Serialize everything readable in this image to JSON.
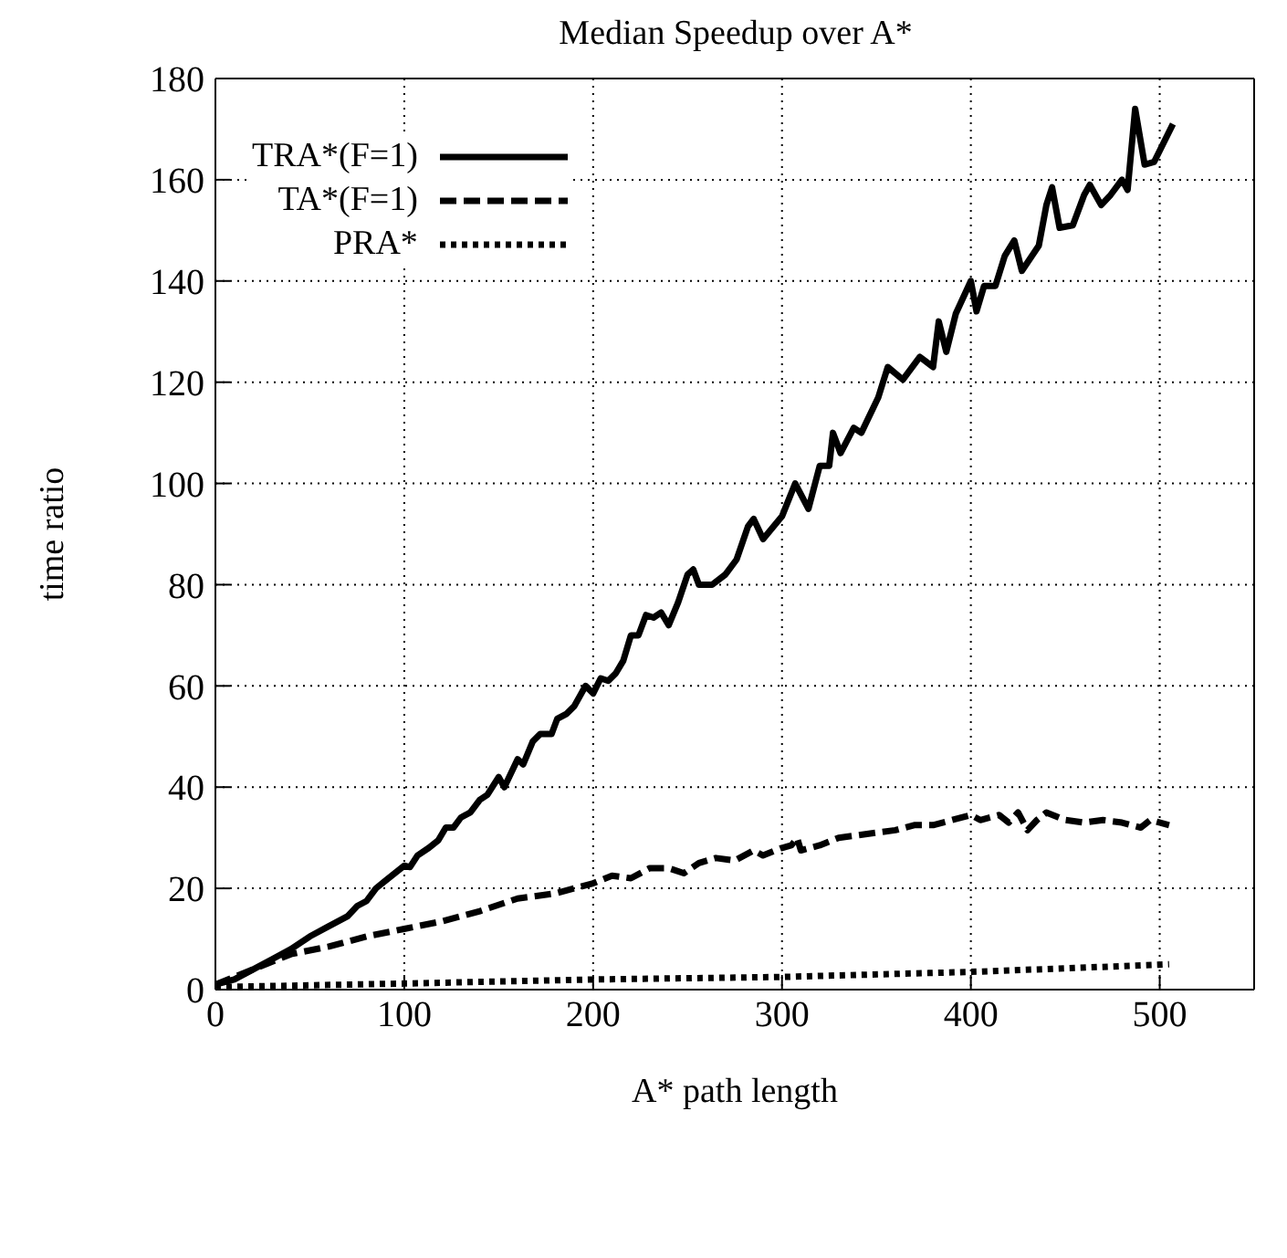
{
  "chart_data": {
    "type": "line",
    "title": "Median Speedup over A*",
    "xlabel": "A* path length",
    "ylabel": "time ratio",
    "xlim": [
      0,
      550
    ],
    "xticks": [
      0,
      100,
      200,
      300,
      400,
      500
    ],
    "ylim": [
      0,
      180
    ],
    "yticks": [
      0,
      20,
      40,
      60,
      80,
      100,
      120,
      140,
      160,
      180
    ],
    "grid": true,
    "legend": "top left",
    "marker": "none",
    "series": [
      {
        "name": "TRA*(F=1)",
        "color": "#000000",
        "line_style": "solid",
        "x": [
          0,
          10,
          20,
          30,
          40,
          50,
          60,
          70,
          75,
          80,
          85,
          90,
          95,
          100,
          103,
          107,
          113,
          118,
          122,
          126,
          130,
          135,
          140,
          144,
          150,
          153,
          160,
          163,
          168,
          172,
          178,
          181,
          186,
          190,
          196,
          200,
          204,
          208,
          212,
          216,
          220,
          224,
          228,
          232,
          236,
          240,
          245,
          250,
          253,
          256,
          263,
          270,
          276,
          282,
          285,
          290,
          300,
          307,
          314,
          320,
          325,
          327,
          331,
          338,
          342,
          351,
          356,
          364,
          373,
          380,
          383,
          387,
          392,
          400,
          403,
          407,
          413,
          418,
          423,
          427,
          436,
          440,
          443,
          447,
          454,
          460,
          463,
          469,
          474,
          480,
          483,
          487,
          492,
          497,
          507
        ],
        "values": [
          1,
          2,
          4,
          6,
          8,
          10.5,
          12.5,
          14.5,
          16.5,
          17.5,
          20,
          21.5,
          23,
          24.5,
          24.2,
          26.5,
          28,
          29.5,
          32,
          32,
          34,
          35,
          37.5,
          38.5,
          42,
          40,
          45.5,
          44.5,
          49,
          50.5,
          50.5,
          53.5,
          54.5,
          56,
          60,
          58.5,
          61.5,
          61,
          62.5,
          65,
          70,
          70,
          74,
          73.5,
          74.5,
          72,
          76.5,
          82,
          83,
          80,
          80,
          82,
          85,
          91.5,
          93,
          89,
          93.5,
          100,
          95,
          103.5,
          103.5,
          110,
          106,
          111,
          110,
          117,
          123,
          120.5,
          125,
          123,
          132,
          126,
          133.5,
          140,
          134,
          139,
          139,
          145,
          148,
          142,
          147,
          155,
          158.5,
          150.5,
          151,
          157,
          159,
          155,
          157,
          160,
          158,
          174,
          163,
          163.5,
          171
        ]
      },
      {
        "name": "TA*(F=1)",
        "color": "#000000",
        "line_style": "dashed",
        "x": [
          0,
          20,
          40,
          60,
          80,
          100,
          120,
          140,
          160,
          180,
          200,
          210,
          220,
          230,
          240,
          248,
          256,
          265,
          275,
          285,
          290,
          300,
          305,
          308,
          310,
          320,
          330,
          340,
          350,
          360,
          370,
          380,
          390,
          400,
          405,
          415,
          420,
          425,
          430,
          435,
          440,
          450,
          460,
          470,
          480,
          490,
          495,
          505
        ],
        "values": [
          1,
          4,
          7,
          8.5,
          10.5,
          12,
          13.5,
          15.5,
          18,
          19,
          21,
          22.5,
          22,
          24,
          24,
          23,
          25,
          26,
          25.5,
          27.5,
          26.5,
          28,
          28.5,
          30,
          27.5,
          28.5,
          30,
          30.5,
          31,
          31.5,
          32.5,
          32.5,
          33.5,
          34.5,
          33.5,
          34.5,
          33,
          35,
          31.5,
          33.5,
          35,
          33.5,
          33,
          33.5,
          33,
          32,
          33.5,
          32.5
        ]
      },
      {
        "name": "PRA*",
        "color": "#000000",
        "line_style": "dotted",
        "x": [
          0,
          100,
          200,
          300,
          400,
          450,
          505
        ],
        "values": [
          0.5,
          1.2,
          2,
          2.5,
          3.5,
          4.2,
          5
        ]
      }
    ]
  }
}
